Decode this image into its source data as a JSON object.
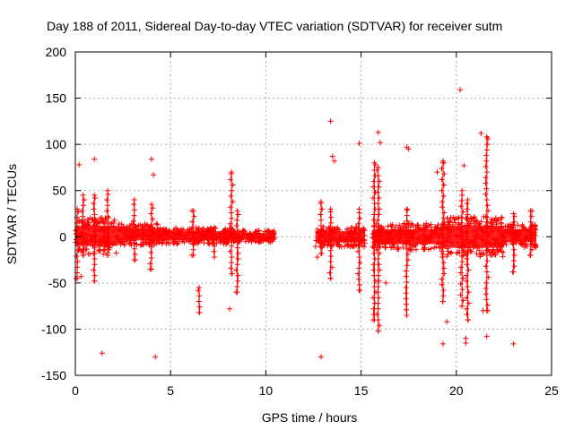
{
  "chart_data": {
    "type": "scatter",
    "title": "Day 188 of 2011, Sidereal Day-to-day VTEC variation (SDTVAR) for receiver sutm",
    "xlabel": "GPS time / hours",
    "ylabel": "SDTVAR / TECUs",
    "xlim": [
      0,
      25
    ],
    "ylim": [
      -150,
      200
    ],
    "xticks": [
      0,
      5,
      10,
      15,
      20,
      25
    ],
    "yticks": [
      -150,
      -100,
      -50,
      0,
      50,
      100,
      150,
      200
    ],
    "grid": true,
    "marker": "plus",
    "color": "#ff0000",
    "band_segments": [
      {
        "x_start": 0.0,
        "x_end": 2.2,
        "y_low": -10,
        "y_high": 12
      },
      {
        "x_start": 2.2,
        "x_end": 4.5,
        "y_low": -4,
        "y_high": 9
      },
      {
        "x_start": 4.5,
        "x_end": 8.2,
        "y_low": -4,
        "y_high": 6
      },
      {
        "x_start": 8.2,
        "x_end": 10.5,
        "y_low": -3,
        "y_high": 4
      },
      {
        "x_start": 12.6,
        "x_end": 15.2,
        "y_low": -6,
        "y_high": 6
      },
      {
        "x_start": 15.6,
        "x_end": 19.3,
        "y_low": -8,
        "y_high": 8
      },
      {
        "x_start": 19.3,
        "x_end": 22.5,
        "y_low": -12,
        "y_high": 12
      },
      {
        "x_start": 22.5,
        "x_end": 24.2,
        "y_low": -6,
        "y_high": 8
      }
    ],
    "spikes": [
      {
        "x": 0.1,
        "y_min": -45,
        "y_max": 30
      },
      {
        "x": 0.4,
        "y_min": -20,
        "y_max": 45
      },
      {
        "x": 1.0,
        "y_min": -48,
        "y_max": 45
      },
      {
        "x": 1.7,
        "y_min": -20,
        "y_max": 50
      },
      {
        "x": 3.1,
        "y_min": -25,
        "y_max": 40
      },
      {
        "x": 4.0,
        "y_min": -35,
        "y_max": 35
      },
      {
        "x": 6.2,
        "y_min": -20,
        "y_max": 28
      },
      {
        "x": 6.5,
        "y_min": -82,
        "y_max": -55
      },
      {
        "x": 7.3,
        "y_min": -22,
        "y_max": 10
      },
      {
        "x": 8.2,
        "y_min": -40,
        "y_max": 70
      },
      {
        "x": 8.5,
        "y_min": -60,
        "y_max": 28
      },
      {
        "x": 12.9,
        "y_min": -18,
        "y_max": 38
      },
      {
        "x": 13.4,
        "y_min": -45,
        "y_max": 30
      },
      {
        "x": 14.9,
        "y_min": -58,
        "y_max": 30
      },
      {
        "x": 15.7,
        "y_min": -90,
        "y_max": 80
      },
      {
        "x": 15.9,
        "y_min": -102,
        "y_max": 75
      },
      {
        "x": 17.4,
        "y_min": -85,
        "y_max": 30
      },
      {
        "x": 19.3,
        "y_min": -70,
        "y_max": 80
      },
      {
        "x": 20.3,
        "y_min": -75,
        "y_max": 50
      },
      {
        "x": 20.6,
        "y_min": -90,
        "y_max": 40
      },
      {
        "x": 21.6,
        "y_min": -80,
        "y_max": 108
      },
      {
        "x": 23.0,
        "y_min": -38,
        "y_max": 25
      },
      {
        "x": 23.9,
        "y_min": -20,
        "y_max": 28
      }
    ],
    "outliers": [
      {
        "x": 0.2,
        "y": 78
      },
      {
        "x": 1.0,
        "y": 84
      },
      {
        "x": 1.4,
        "y": -126
      },
      {
        "x": 0.3,
        "y": -43
      },
      {
        "x": 4.0,
        "y": 84
      },
      {
        "x": 4.1,
        "y": 67
      },
      {
        "x": 4.2,
        "y": -130
      },
      {
        "x": 8.1,
        "y": -78
      },
      {
        "x": 12.9,
        "y": -130
      },
      {
        "x": 13.4,
        "y": 125
      },
      {
        "x": 13.5,
        "y": 87
      },
      {
        "x": 13.6,
        "y": 82
      },
      {
        "x": 14.9,
        "y": 101
      },
      {
        "x": 15.9,
        "y": 113
      },
      {
        "x": 16.0,
        "y": 102
      },
      {
        "x": 17.4,
        "y": 97
      },
      {
        "x": 17.5,
        "y": 95
      },
      {
        "x": 19.0,
        "y": 70
      },
      {
        "x": 19.3,
        "y": 82
      },
      {
        "x": 19.3,
        "y": -116
      },
      {
        "x": 19.5,
        "y": -92
      },
      {
        "x": 20.2,
        "y": 159
      },
      {
        "x": 20.4,
        "y": 77
      },
      {
        "x": 20.5,
        "y": -110
      },
      {
        "x": 20.5,
        "y": -115
      },
      {
        "x": 21.3,
        "y": 112
      },
      {
        "x": 21.6,
        "y": 108
      },
      {
        "x": 21.6,
        "y": -108
      },
      {
        "x": 21.4,
        "y": -80
      },
      {
        "x": 23.0,
        "y": -116
      },
      {
        "x": 16.3,
        "y": -50
      },
      {
        "x": 12.7,
        "y": -22
      }
    ]
  }
}
